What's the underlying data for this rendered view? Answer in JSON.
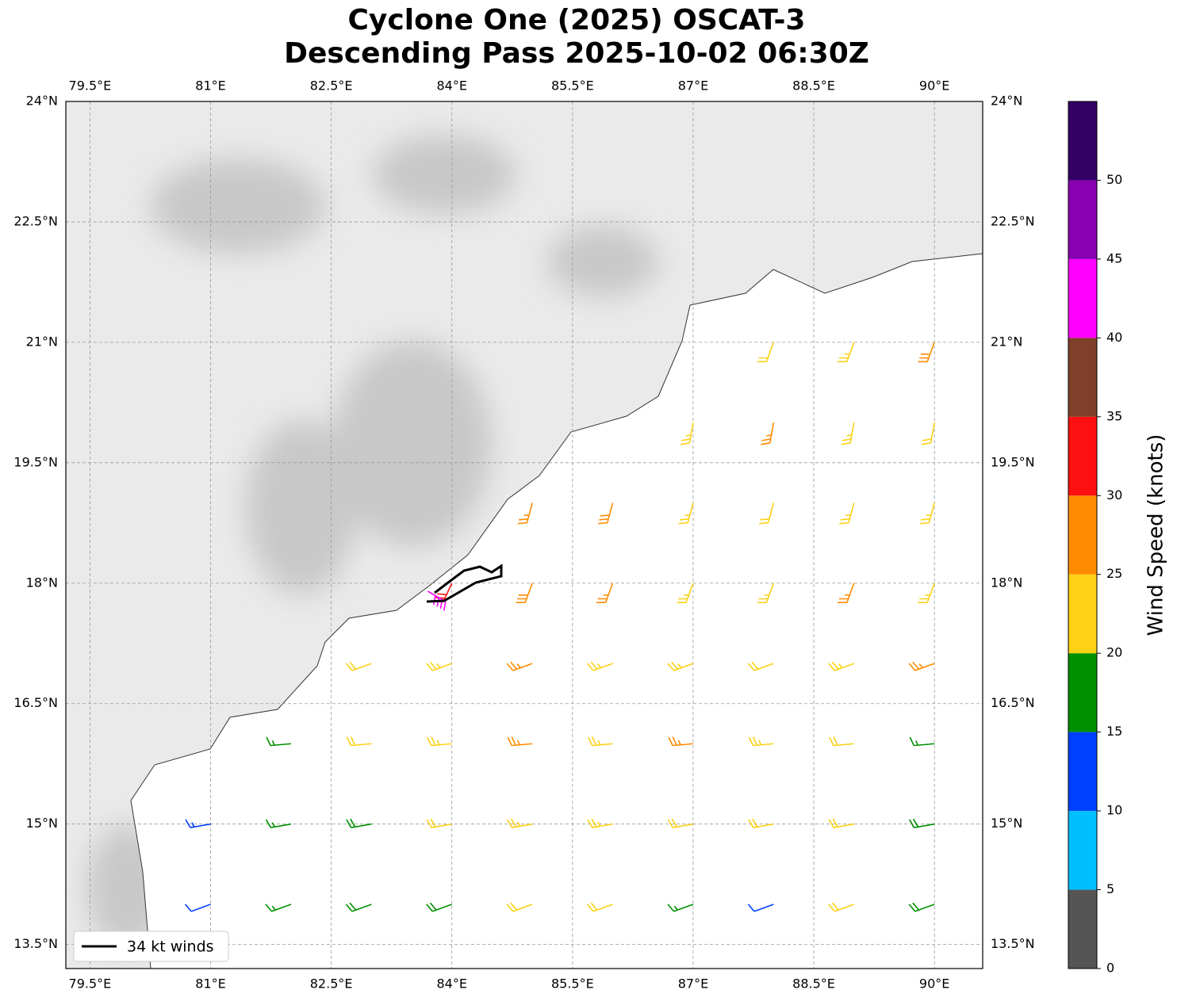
{
  "chart_data": {
    "type": "wind-barb-map",
    "title": [
      "Cyclone One (2025) OSCAT-3",
      "Descending Pass 2025-10-02 06:30Z"
    ],
    "xlim": [
      79.2,
      90.6
    ],
    "ylim": [
      13.2,
      24
    ],
    "xticks": [
      {
        "value": 79.5,
        "label": "79.5°E"
      },
      {
        "value": 81,
        "label": "81°E"
      },
      {
        "value": 82.5,
        "label": "82.5°E"
      },
      {
        "value": 84,
        "label": "84°E"
      },
      {
        "value": 85.5,
        "label": "85.5°E"
      },
      {
        "value": 87,
        "label": "87°E"
      },
      {
        "value": 88.5,
        "label": "88.5°E"
      },
      {
        "value": 90,
        "label": "90°E"
      }
    ],
    "yticks": [
      {
        "value": 24,
        "label": "24°N"
      },
      {
        "value": 22.5,
        "label": "22.5°N"
      },
      {
        "value": 21,
        "label": "21°N"
      },
      {
        "value": 19.5,
        "label": "19.5°N"
      },
      {
        "value": 18,
        "label": "18°N"
      },
      {
        "value": 16.5,
        "label": "16.5°N"
      },
      {
        "value": 15,
        "label": "15°N"
      },
      {
        "value": 13.5,
        "label": "13.5°N"
      }
    ],
    "grid": true,
    "legend": {
      "label": "34 kt winds",
      "position": "lower left"
    },
    "colorbar": {
      "label": "Wind Speed (knots)",
      "clim": [
        0,
        55
      ],
      "ticks": [
        0,
        5,
        10,
        15,
        20,
        25,
        30,
        35,
        40,
        45,
        50
      ],
      "colors": [
        "#555555",
        "#00bfff",
        "#0040ff",
        "#009000",
        "#fcd116",
        "#ff8c00",
        "#ff1010",
        "#7f3f2a",
        "#ff00ff",
        "#8800b0",
        "#330066"
      ]
    },
    "barbs": {
      "lon": [
        81,
        82,
        83,
        84,
        85,
        86,
        87,
        88,
        89,
        90,
        81,
        82,
        83,
        84,
        85,
        86,
        87,
        88,
        89,
        90,
        82,
        83,
        84,
        85,
        86,
        87,
        88,
        89,
        90,
        83,
        84,
        85,
        86,
        87,
        88,
        89,
        90,
        84,
        85,
        86,
        87,
        88,
        89,
        90,
        85,
        86,
        87,
        88,
        89,
        90,
        87,
        88,
        89,
        90,
        88,
        89,
        90,
        83.7
      ],
      "lat": [
        14,
        14,
        14,
        14,
        14,
        14,
        14,
        14,
        14,
        14,
        15,
        15,
        15,
        15,
        15,
        15,
        15,
        15,
        15,
        15,
        16,
        16,
        16,
        16,
        16,
        16,
        16,
        16,
        16,
        17,
        17,
        17,
        17,
        17,
        17,
        17,
        17,
        18,
        18,
        18,
        18,
        18,
        18,
        18,
        19,
        19,
        19,
        19,
        19,
        19,
        20,
        20,
        20,
        20,
        21,
        21,
        21,
        17.9
      ],
      "speed": [
        12,
        17,
        18,
        19,
        22,
        22,
        17,
        12,
        20,
        18,
        14,
        17,
        19,
        22,
        24,
        23,
        20,
        21,
        22,
        18,
        17,
        22,
        23,
        27,
        24,
        26,
        23,
        22,
        17,
        22,
        24,
        26,
        24,
        23,
        22,
        24,
        26,
        32,
        29,
        26,
        23,
        24,
        25,
        24,
        26,
        28,
        24,
        22,
        23,
        24,
        24,
        25,
        23,
        22,
        22,
        23,
        28,
        42
      ],
      "direction": [
        250,
        250,
        250,
        250,
        250,
        250,
        250,
        250,
        250,
        250,
        260,
        260,
        260,
        260,
        260,
        260,
        260,
        260,
        260,
        260,
        265,
        265,
        265,
        265,
        265,
        265,
        265,
        265,
        265,
        250,
        250,
        250,
        250,
        250,
        250,
        250,
        250,
        205,
        200,
        200,
        200,
        200,
        200,
        200,
        195,
        195,
        195,
        195,
        195,
        195,
        190,
        190,
        190,
        190,
        200,
        200,
        200,
        120
      ]
    }
  }
}
